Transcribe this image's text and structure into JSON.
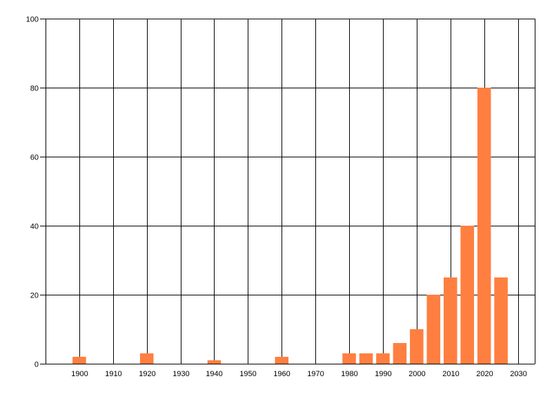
{
  "chart_data": {
    "type": "bar",
    "title": "",
    "xlabel": "",
    "ylabel": "",
    "x": [
      1900,
      1920,
      1940,
      1960,
      1980,
      1985,
      1990,
      1995,
      2000,
      2005,
      2010,
      2015,
      2020,
      2025
    ],
    "values": [
      2,
      3,
      1,
      2,
      3,
      3,
      3,
      6,
      10,
      20,
      25,
      40,
      80,
      25
    ],
    "xlim": [
      1890,
      2035
    ],
    "ylim": [
      0,
      100
    ],
    "xticks": [
      1900,
      1910,
      1920,
      1930,
      1940,
      1950,
      1960,
      1970,
      1980,
      1990,
      2000,
      2010,
      2020,
      2030
    ],
    "yticks": [
      0,
      20,
      40,
      60,
      80,
      100
    ],
    "bar_width_years": 4,
    "grid": true,
    "legend": "none",
    "colors": {
      "bar": "#FF7F40",
      "grid": "#000000"
    }
  }
}
